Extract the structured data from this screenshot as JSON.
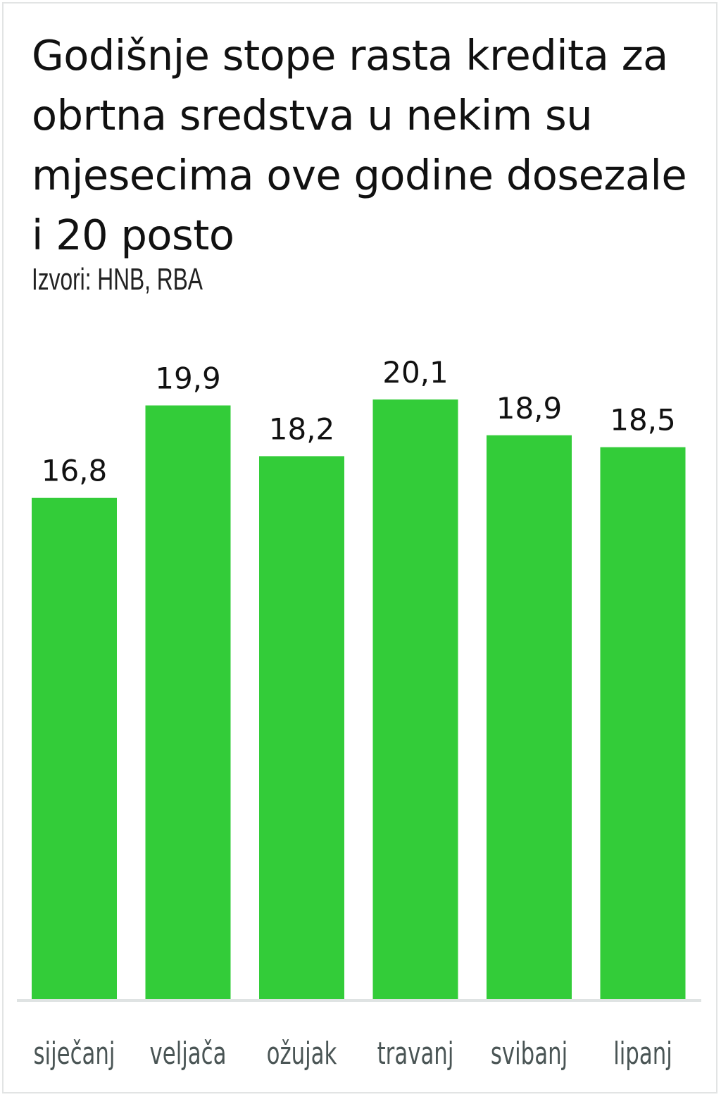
{
  "chart_data": {
    "type": "bar",
    "title": "Godišnje stope rasta kredita za obrtna sredstva u nekim su mjesecima ove godine dosezale i 20 posto",
    "subtitle": "Izvori: HNB, RBA",
    "categories": [
      "siječanj",
      "veljača",
      "ožujak",
      "travanj",
      "svibanj",
      "lipanj"
    ],
    "values": [
      16.8,
      19.9,
      18.2,
      20.1,
      18.9,
      18.5
    ],
    "value_labels": [
      "16,8",
      "19,9",
      "18,2",
      "20,1",
      "18,9",
      "18,5"
    ],
    "xlabel": "",
    "ylabel": "",
    "ylim": [
      0,
      20.1
    ],
    "grid": false,
    "bar_color": "#33cc39",
    "baseline_color": "#dfe3e3"
  }
}
